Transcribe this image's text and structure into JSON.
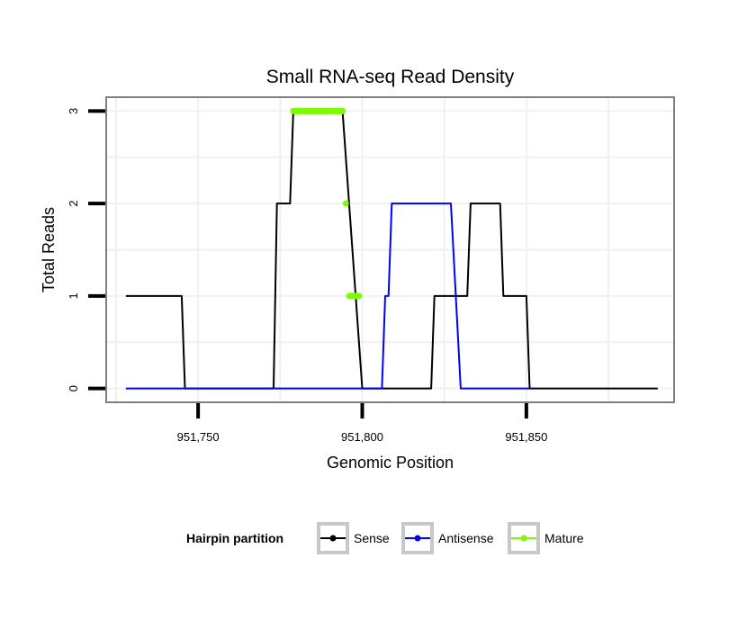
{
  "chart_data": {
    "type": "line",
    "title": "Small RNA-seq Read Density",
    "xlabel": "Genomic Position",
    "ylabel": "Total Reads",
    "xlim": [
      951722,
      951895
    ],
    "ylim": [
      -0.15,
      3.15
    ],
    "x_ticks": [
      951750,
      951800,
      951850
    ],
    "x_tick_labels": [
      "951,750",
      "951,800",
      "951,850"
    ],
    "y_ticks": [
      0,
      1,
      2,
      3
    ],
    "y_tick_labels": [
      "0",
      "1",
      "2",
      "3"
    ],
    "grid": true,
    "legend": {
      "title": "Hairpin partition",
      "position": "bottom",
      "entries": [
        {
          "name": "Sense",
          "color": "#000000"
        },
        {
          "name": "Antisense",
          "color": "#0000ff"
        },
        {
          "name": "Mature",
          "color": "#7cfc00"
        }
      ]
    },
    "series": [
      {
        "name": "Sense",
        "color": "#000000",
        "points": [
          [
            951728,
            1
          ],
          [
            951745,
            1
          ],
          [
            951746,
            0
          ],
          [
            951773,
            0
          ],
          [
            951774,
            2
          ],
          [
            951778,
            2
          ],
          [
            951779,
            3
          ],
          [
            951794,
            3
          ],
          [
            951800,
            0
          ],
          [
            951821,
            0
          ],
          [
            951822,
            1
          ],
          [
            951826,
            1
          ],
          [
            951827,
            1
          ],
          [
            951832,
            1
          ],
          [
            951833,
            2
          ],
          [
            951842,
            2
          ],
          [
            951843,
            1
          ],
          [
            951850,
            1
          ],
          [
            951851,
            0
          ],
          [
            951890,
            0
          ]
        ]
      },
      {
        "name": "Antisense",
        "color": "#0000ff",
        "points": [
          [
            951728,
            0
          ],
          [
            951806,
            0
          ],
          [
            951807,
            1
          ],
          [
            951808,
            1
          ],
          [
            951809,
            2
          ],
          [
            951827,
            2
          ],
          [
            951830,
            0
          ],
          [
            951851,
            0
          ]
        ]
      },
      {
        "name": "Mature",
        "color": "#7cfc00",
        "segments": [
          {
            "x": [
              951779,
              951794
            ],
            "y": 3
          },
          {
            "x": [
              951795,
              951795
            ],
            "y": 2
          },
          {
            "x": [
              951796,
              951799
            ],
            "y": 1
          }
        ]
      }
    ]
  }
}
